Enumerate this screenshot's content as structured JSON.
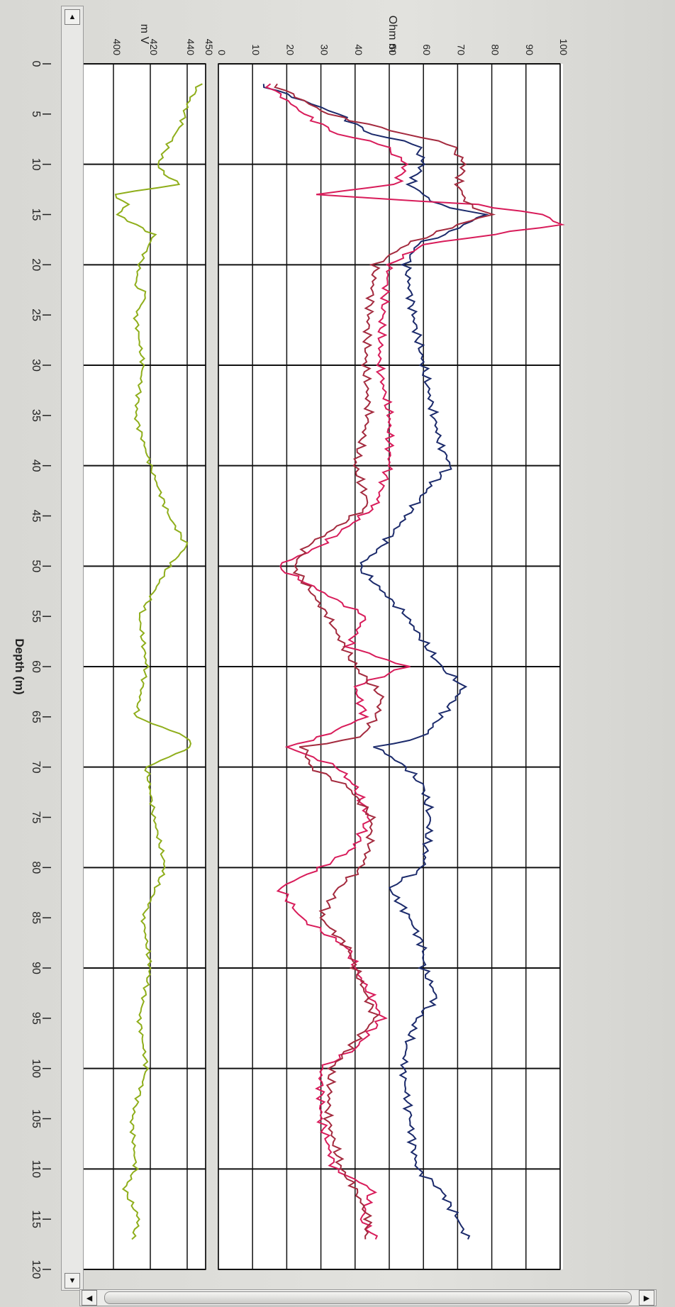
{
  "window": {
    "scroll_up_icon": "triangle-up-icon",
    "scroll_down_icon": "triangle-down-icon",
    "scroll_left_icon": "triangle-left-icon",
    "scroll_right_icon": "triangle-right-icon"
  },
  "chart_data": [
    {
      "type": "line",
      "panel": "spontaneous-potential",
      "ylabel": "m V",
      "xlabel": "Depth (m)",
      "ylim": [
        380,
        450
      ],
      "yticks": [
        "380",
        "400",
        "420",
        "440",
        "450"
      ],
      "xlim": [
        0,
        120
      ],
      "xticks": [
        "0",
        "5",
        "10",
        "15",
        "20",
        "25",
        "30",
        "35",
        "40",
        "45",
        "50",
        "55",
        "60",
        "65",
        "70",
        "75",
        "80",
        "85",
        "90",
        "95",
        "100",
        "105",
        "110",
        "115",
        "120"
      ],
      "series": [
        {
          "color": "#8fae1b",
          "x": [
            2,
            4,
            6,
            8,
            10,
            11,
            12,
            13,
            14,
            15,
            17,
            20,
            22,
            23,
            25,
            30,
            35,
            40,
            45,
            48,
            50,
            55,
            60,
            65,
            67,
            68,
            70,
            75,
            80,
            85,
            90,
            95,
            100,
            105,
            110,
            112,
            115,
            117
          ],
          "y": [
            447,
            440,
            437,
            430,
            424,
            428,
            436,
            400,
            408,
            402,
            422,
            414,
            412,
            418,
            412,
            416,
            412,
            420,
            430,
            440,
            430,
            414,
            418,
            412,
            440,
            442,
            418,
            422,
            428,
            416,
            420,
            414,
            418,
            410,
            412,
            406,
            414,
            410
          ]
        }
      ]
    },
    {
      "type": "line",
      "panel": "resistivity",
      "ylabel": "Ohm m",
      "xlabel": "Depth (m)",
      "ylim": [
        0,
        100
      ],
      "yticks": [
        "0",
        "10",
        "20",
        "30",
        "40",
        "50",
        "60",
        "70",
        "80",
        "90",
        "100"
      ],
      "xlim": [
        0,
        120
      ],
      "series": [
        {
          "color": "#1b2a6b",
          "x": [
            2,
            5,
            7,
            8,
            10,
            12,
            14,
            15,
            17,
            18,
            20,
            25,
            30,
            35,
            38,
            40,
            42,
            45,
            48,
            50,
            55,
            60,
            62,
            65,
            67,
            68,
            70,
            72,
            75,
            80,
            82,
            85,
            88,
            90,
            93,
            95,
            98,
            100,
            105,
            110,
            112,
            115,
            117
          ],
          "y": [
            12,
            35,
            45,
            58,
            60,
            56,
            64,
            78,
            66,
            58,
            55,
            57,
            60,
            63,
            65,
            68,
            62,
            55,
            48,
            41,
            55,
            65,
            72,
            65,
            60,
            46,
            55,
            60,
            62,
            60,
            50,
            56,
            60,
            60,
            64,
            58,
            55,
            54,
            56,
            58,
            65,
            70,
            73
          ]
        },
        {
          "color": "#d81c5a",
          "x": [
            2,
            5,
            7,
            8,
            10,
            12,
            13,
            14,
            15,
            16,
            18,
            20,
            25,
            30,
            35,
            40,
            44,
            46,
            48,
            50,
            55,
            58,
            60,
            62,
            65,
            67,
            68,
            70,
            72,
            75,
            78,
            80,
            82,
            85,
            88,
            90,
            93,
            95,
            98,
            100,
            105,
            110,
            112,
            115,
            117
          ],
          "y": [
            14,
            25,
            35,
            48,
            55,
            52,
            28,
            75,
            95,
            100,
            60,
            50,
            48,
            47,
            50,
            50,
            46,
            38,
            30,
            17,
            43,
            38,
            55,
            40,
            43,
            30,
            20,
            35,
            40,
            44,
            40,
            30,
            18,
            24,
            38,
            40,
            45,
            48,
            40,
            30,
            30,
            34,
            45,
            42,
            46
          ]
        },
        {
          "color": "#a42a3e",
          "x": [
            2,
            5,
            7,
            8,
            10,
            12,
            14,
            15,
            16,
            18,
            20,
            25,
            30,
            35,
            40,
            44,
            46,
            48,
            50,
            55,
            60,
            63,
            65,
            67,
            68,
            70,
            72,
            75,
            78,
            80,
            82,
            85,
            88,
            90,
            95,
            100,
            105,
            110,
            112,
            115,
            117
          ],
          "y": [
            16,
            32,
            55,
            68,
            72,
            70,
            73,
            80,
            70,
            55,
            46,
            44,
            43,
            44,
            40,
            44,
            35,
            26,
            22,
            32,
            40,
            48,
            46,
            42,
            25,
            27,
            38,
            45,
            44,
            42,
            35,
            30,
            38,
            40,
            46,
            33,
            32,
            36,
            40,
            44,
            43
          ]
        }
      ]
    }
  ]
}
